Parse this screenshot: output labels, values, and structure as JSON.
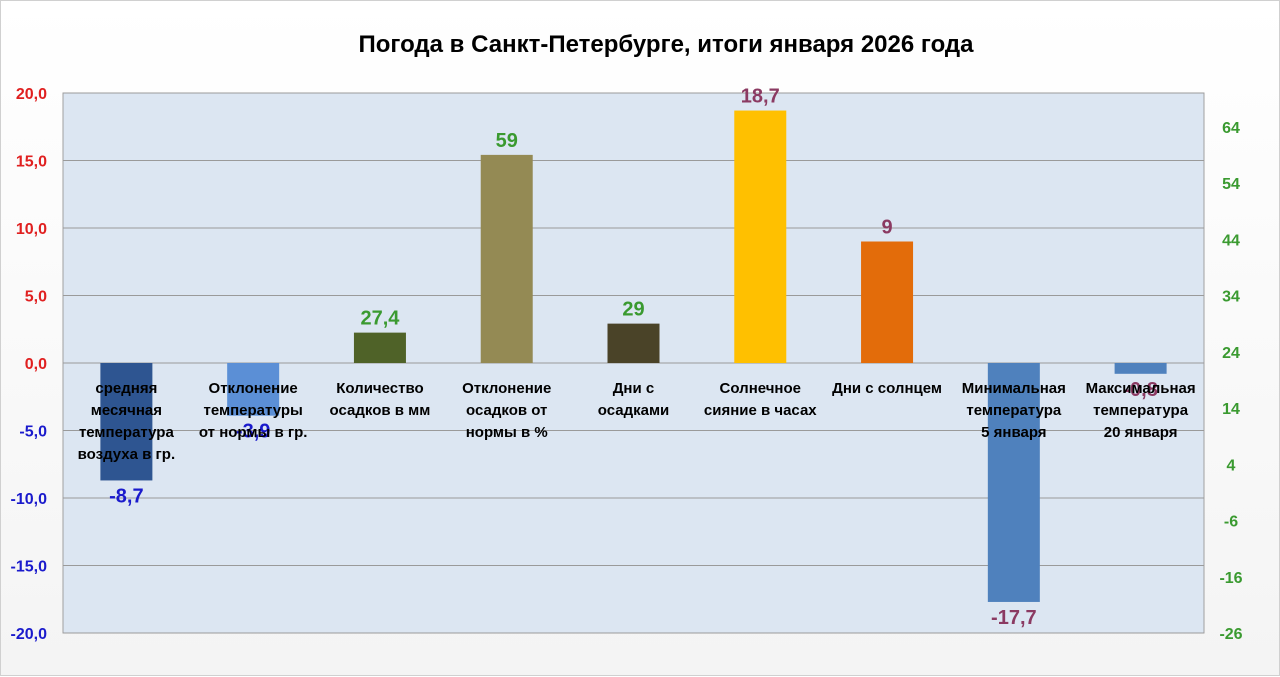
{
  "chart_data": {
    "type": "bar",
    "title": "Погода в Санкт-Петербурге, итоги января 2026 года",
    "left_axis": {
      "ylim": [
        -20,
        20
      ],
      "ticks": [
        "20,0",
        "15,0",
        "10,0",
        "5,0",
        "0,0",
        "-5,0",
        "-10,0",
        "-15,0",
        "-20,0"
      ],
      "positive_color": "#e02020",
      "negative_color": "#1a1acc"
    },
    "right_axis": {
      "ylim": [
        -26,
        70
      ],
      "ticks": [
        "64",
        "54",
        "44",
        "34",
        "24",
        "14",
        "4",
        "-6",
        "-16",
        "-26"
      ],
      "color": "#3a9a30"
    },
    "grid": true,
    "bars": [
      {
        "category": [
          "средняя",
          "месячная",
          "температура",
          "воздуха в гр."
        ],
        "value": -8.7,
        "label": "-8,7",
        "axis": "left",
        "color": "#2e5591",
        "label_color": "#1a1acc"
      },
      {
        "category": [
          "Отклонение",
          "температуры",
          "от нормы в гр."
        ],
        "value": -3.9,
        "label": "-3,9",
        "axis": "left",
        "color": "#5b8fd6",
        "label_color": "#1a1acc"
      },
      {
        "category": [
          "Количество",
          "осадков в мм"
        ],
        "value": 27.4,
        "label": "27,4",
        "axis": "right",
        "color": "#4f6228",
        "label_color": "#3a9a30"
      },
      {
        "category": [
          "Отклонение",
          "осадков от",
          "нормы в %"
        ],
        "value": 59,
        "label": "59",
        "axis": "right",
        "color": "#948a54",
        "label_color": "#3a9a30"
      },
      {
        "category": [
          "Дни с",
          "осадками"
        ],
        "value": 29,
        "label": "29",
        "axis": "right",
        "color": "#4a4328",
        "label_color": "#3a9a30"
      },
      {
        "category": [
          "Солнечное",
          "сияние в часах"
        ],
        "value": 18.7,
        "label": "18,7",
        "axis": "left",
        "color": "#ffc000",
        "label_color": "#8b3a62"
      },
      {
        "category": [
          "Дни с солнцем"
        ],
        "value": 9,
        "label": "9",
        "axis": "left",
        "color": "#e36c0a",
        "label_color": "#8b3a62"
      },
      {
        "category": [
          "Минимальная",
          "температура",
          "5 января"
        ],
        "value": -17.7,
        "label": "-17,7",
        "axis": "left",
        "color": "#4f81bd",
        "label_color": "#8b3a62"
      },
      {
        "category": [
          "Максимальная",
          "температура",
          "20 января"
        ],
        "value": -0.8,
        "label": "-0,8",
        "axis": "left",
        "color": "#4f81bd",
        "label_color": "#8b3a62"
      }
    ]
  }
}
